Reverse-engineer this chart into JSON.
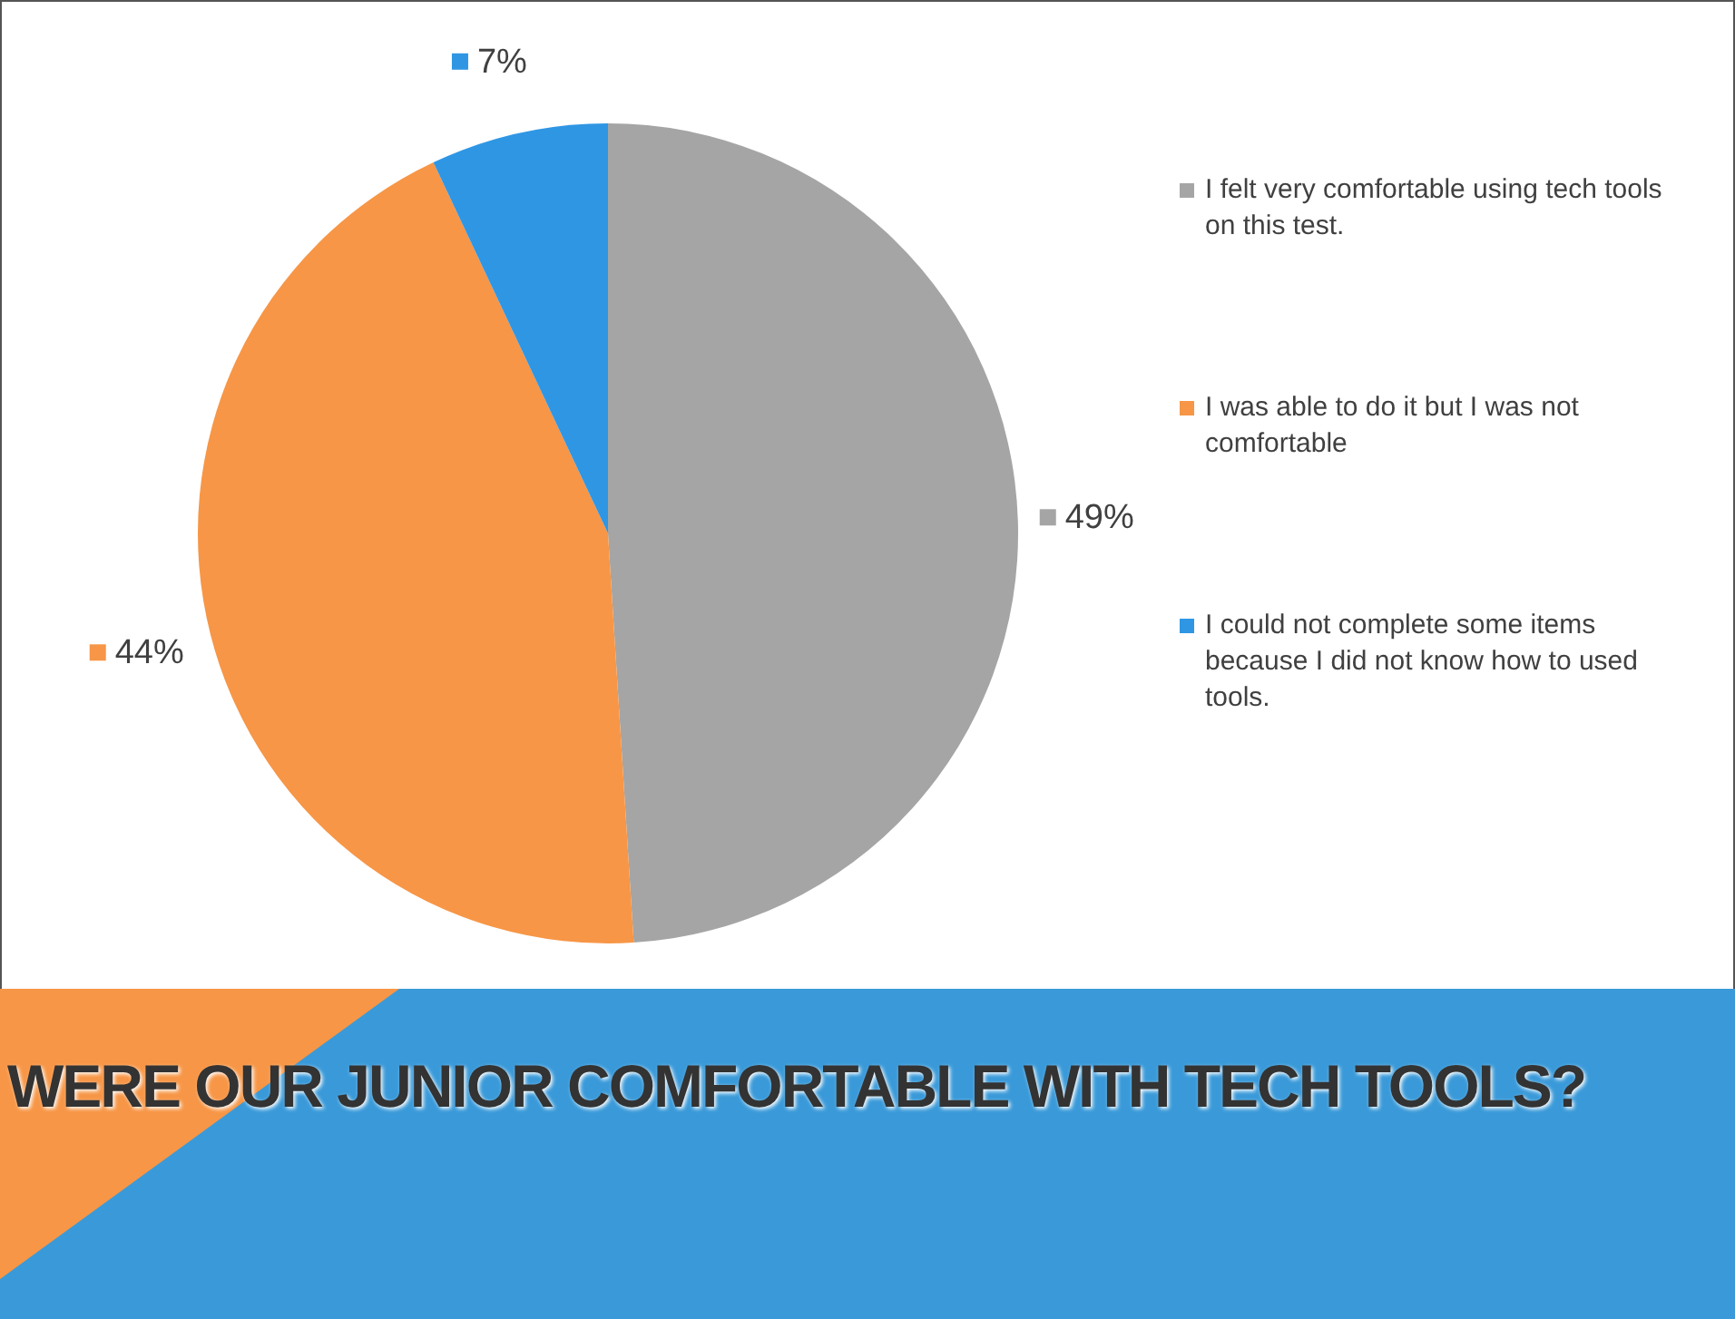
{
  "chart_data": {
    "type": "pie",
    "title": "WERE OUR JUNIOR COMFORTABLE WITH TECH TOOLS?",
    "categories": [
      "I felt very comfortable using tech tools on this test.",
      "I was able to do it but I was not comfortable",
      "I could not complete some items because I did not know how to used tools."
    ],
    "values": [
      49,
      44,
      7
    ],
    "colors": [
      "#a5a5a5",
      "#f79646",
      "#2f96e4"
    ],
    "value_labels": [
      "49%",
      "44%",
      "7%"
    ],
    "legend": "right"
  }
}
